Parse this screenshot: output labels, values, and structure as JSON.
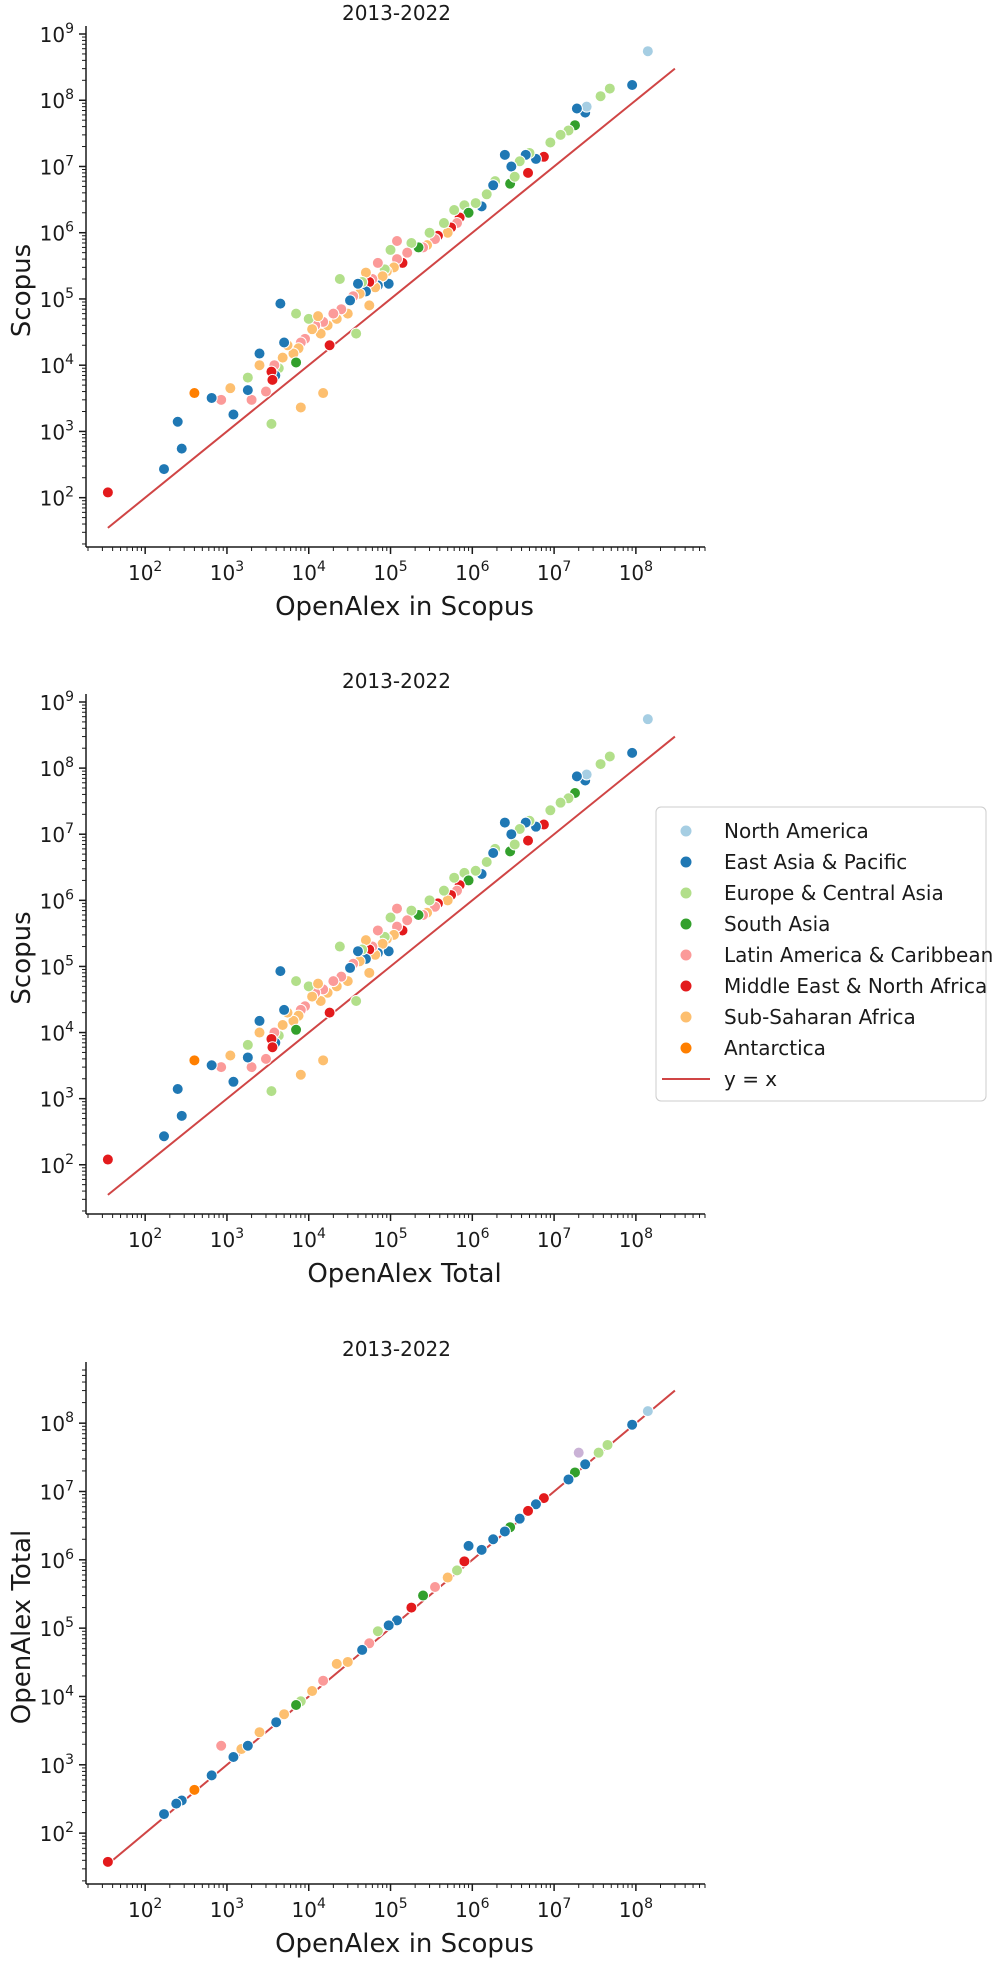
{
  "colors": {
    "North America": "#a6cee3",
    "East Asia & Pacific": "#1f78b4",
    "Europe & Central Asia": "#b2df8a",
    "South Asia": "#33a02c",
    "Latin America & Caribbean": "#fb9a99",
    "Middle East & North Africa": "#e31a1c",
    "Sub-Saharan Africa": "#fdbf6f",
    "Antarctica": "#ff7f00",
    "Other": "#cab2d6",
    "identity_line": "#d04545"
  },
  "legend": {
    "entries": [
      "North America",
      "East Asia & Pacific",
      "Europe & Central Asia",
      "South Asia",
      "Latin America & Caribbean",
      "Middle East & North Africa",
      "Sub-Saharan Africa",
      "Antarctica"
    ],
    "line_label": "y = x",
    "placement": "right of middle panel"
  },
  "chart_data": [
    {
      "type": "scatter",
      "title": "2013-2022",
      "xlabel": "OpenAlex in Scopus",
      "ylabel": "Scopus",
      "xscale": "log",
      "yscale": "log",
      "xlim": [
        20,
        700000000
      ],
      "ylim": [
        18,
        1000000000
      ],
      "x_ticks": [
        "10^2",
        "10^3",
        "10^4",
        "10^5",
        "10^6",
        "10^7",
        "10^8"
      ],
      "y_ticks": [
        "10^2",
        "10^3",
        "10^4",
        "10^5",
        "10^6",
        "10^7",
        "10^8",
        "10^9"
      ],
      "line": {
        "label": "y = x",
        "from": 35,
        "to": 300000000
      },
      "points": [
        {
          "r": "North America",
          "x": 140000000,
          "y": 550000000
        },
        {
          "r": "East Asia & Pacific",
          "x": 90000000,
          "y": 170000000
        },
        {
          "r": "Europe & Central Asia",
          "x": 48000000,
          "y": 150000000
        },
        {
          "r": "Europe & Central Asia",
          "x": 37000000,
          "y": 115000000
        },
        {
          "r": "East Asia & Pacific",
          "x": 24000000,
          "y": 65000000
        },
        {
          "r": "North America",
          "x": 25000000,
          "y": 80000000
        },
        {
          "r": "East Asia & Pacific",
          "x": 19000000,
          "y": 75000000
        },
        {
          "r": "South Asia",
          "x": 18000000,
          "y": 42000000
        },
        {
          "r": "Europe & Central Asia",
          "x": 15000000,
          "y": 35000000
        },
        {
          "r": "Europe & Central Asia",
          "x": 12000000,
          "y": 30000000
        },
        {
          "r": "Europe & Central Asia",
          "x": 9000000,
          "y": 23000000
        },
        {
          "r": "Middle East & North Africa",
          "x": 7500000,
          "y": 14000000
        },
        {
          "r": "East Asia & Pacific",
          "x": 6000000,
          "y": 13000000
        },
        {
          "r": "Middle East & North Africa",
          "x": 4800000,
          "y": 8000000
        },
        {
          "r": "Europe & Central Asia",
          "x": 5000000,
          "y": 16000000
        },
        {
          "r": "East Asia & Pacific",
          "x": 4500000,
          "y": 15000000
        },
        {
          "r": "Europe & Central Asia",
          "x": 3800000,
          "y": 12000000
        },
        {
          "r": "East Asia & Pacific",
          "x": 3000000,
          "y": 10000000
        },
        {
          "r": "South Asia",
          "x": 2900000,
          "y": 5500000
        },
        {
          "r": "Europe & Central Asia",
          "x": 3300000,
          "y": 7000000
        },
        {
          "r": "East Asia & Pacific",
          "x": 2500000,
          "y": 15000000
        },
        {
          "r": "Europe & Central Asia",
          "x": 1900000,
          "y": 6000000
        },
        {
          "r": "East Asia & Pacific",
          "x": 1800000,
          "y": 5200000
        },
        {
          "r": "Europe & Central Asia",
          "x": 1500000,
          "y": 3800000
        },
        {
          "r": "East Asia & Pacific",
          "x": 1300000,
          "y": 2500000
        },
        {
          "r": "Europe & Central Asia",
          "x": 1100000,
          "y": 2800000
        },
        {
          "r": "Europe & Central Asia",
          "x": 800000,
          "y": 2600000
        },
        {
          "r": "South Asia",
          "x": 900000,
          "y": 2000000
        },
        {
          "r": "Middle East & North Africa",
          "x": 700000,
          "y": 1700000
        },
        {
          "r": "Latin America & Caribbean",
          "x": 650000,
          "y": 1400000
        },
        {
          "r": "Europe & Central Asia",
          "x": 600000,
          "y": 2200000
        },
        {
          "r": "Middle East & North Africa",
          "x": 550000,
          "y": 1200000
        },
        {
          "r": "Sub-Saharan Africa",
          "x": 500000,
          "y": 1000000
        },
        {
          "r": "Europe & Central Asia",
          "x": 450000,
          "y": 1400000
        },
        {
          "r": "Middle East & North Africa",
          "x": 380000,
          "y": 900000
        },
        {
          "r": "Latin America & Caribbean",
          "x": 350000,
          "y": 800000
        },
        {
          "r": "Europe & Central Asia",
          "x": 300000,
          "y": 1000000
        },
        {
          "r": "Sub-Saharan Africa",
          "x": 280000,
          "y": 650000
        },
        {
          "r": "Latin America & Caribbean",
          "x": 250000,
          "y": 600000
        },
        {
          "r": "South Asia",
          "x": 220000,
          "y": 600000
        },
        {
          "r": "Europe & Central Asia",
          "x": 180000,
          "y": 700000
        },
        {
          "r": "Latin America & Caribbean",
          "x": 160000,
          "y": 500000
        },
        {
          "r": "Middle East & North Africa",
          "x": 140000,
          "y": 350000
        },
        {
          "r": "Latin America & Caribbean",
          "x": 120000,
          "y": 400000
        },
        {
          "r": "Latin America & Caribbean",
          "x": 120000,
          "y": 750000
        },
        {
          "r": "Europe & Central Asia",
          "x": 100000,
          "y": 550000
        },
        {
          "r": "Sub-Saharan Africa",
          "x": 110000,
          "y": 300000
        },
        {
          "r": "East Asia & Pacific",
          "x": 95000,
          "y": 170000
        },
        {
          "r": "Sub-Saharan Africa",
          "x": 90000,
          "y": 260000
        },
        {
          "r": "Europe & Central Asia",
          "x": 85000,
          "y": 280000
        },
        {
          "r": "Latin America & Caribbean",
          "x": 70000,
          "y": 350000
        },
        {
          "r": "Sub-Saharan Africa",
          "x": 80000,
          "y": 220000
        },
        {
          "r": "East Asia & Pacific",
          "x": 70000,
          "y": 160000
        },
        {
          "r": "Sub-Saharan Africa",
          "x": 65000,
          "y": 150000
        },
        {
          "r": "Latin America & Caribbean",
          "x": 60000,
          "y": 200000
        },
        {
          "r": "Middle East & North Africa",
          "x": 55000,
          "y": 180000
        },
        {
          "r": "Sub-Saharan Africa",
          "x": 50000,
          "y": 250000
        },
        {
          "r": "East Asia & Pacific",
          "x": 50000,
          "y": 130000
        },
        {
          "r": "Europe & Central Asia",
          "x": 45000,
          "y": 180000
        },
        {
          "r": "Sub-Saharan Africa",
          "x": 42000,
          "y": 120000
        },
        {
          "r": "East Asia & Pacific",
          "x": 40000,
          "y": 170000
        },
        {
          "r": "Latin America & Caribbean",
          "x": 35000,
          "y": 110000
        },
        {
          "r": "East Asia & Pacific",
          "x": 32000,
          "y": 95000
        },
        {
          "r": "Sub-Saharan Africa",
          "x": 30000,
          "y": 60000
        },
        {
          "r": "Europe & Central Asia",
          "x": 38000,
          "y": 30000
        },
        {
          "r": "Europe & Central Asia",
          "x": 24000,
          "y": 200000
        },
        {
          "r": "Sub-Saharan Africa",
          "x": 55000,
          "y": 80000
        },
        {
          "r": "Latin America & Caribbean",
          "x": 25000,
          "y": 70000
        },
        {
          "r": "Sub-Saharan Africa",
          "x": 22000,
          "y": 50000
        },
        {
          "r": "Latin America & Caribbean",
          "x": 20000,
          "y": 60000
        },
        {
          "r": "Sub-Saharan Africa",
          "x": 17000,
          "y": 40000
        },
        {
          "r": "Latin America & Caribbean",
          "x": 15000,
          "y": 45000
        },
        {
          "r": "Middle East & North Africa",
          "x": 18000,
          "y": 20000
        },
        {
          "r": "Sub-Saharan Africa",
          "x": 14000,
          "y": 30000
        },
        {
          "r": "Latin America & Caribbean",
          "x": 12000,
          "y": 40000
        },
        {
          "r": "Sub-Saharan Africa",
          "x": 11000,
          "y": 35000
        },
        {
          "r": "Europe & Central Asia",
          "x": 10000,
          "y": 50000
        },
        {
          "r": "Sub-Saharan Africa",
          "x": 13000,
          "y": 55000
        },
        {
          "r": "Latin America & Caribbean",
          "x": 9000,
          "y": 25000
        },
        {
          "r": "Latin America & Caribbean",
          "x": 8000,
          "y": 22000
        },
        {
          "r": "Sub-Saharan Africa",
          "x": 7500,
          "y": 18000
        },
        {
          "r": "Europe & Central Asia",
          "x": 7000,
          "y": 60000
        },
        {
          "r": "Sub-Saharan Africa",
          "x": 6500,
          "y": 15000
        },
        {
          "r": "South Asia",
          "x": 7000,
          "y": 11000
        },
        {
          "r": "Sub-Saharan Africa",
          "x": 5500,
          "y": 20000
        },
        {
          "r": "East Asia & Pacific",
          "x": 5000,
          "y": 22000
        },
        {
          "r": "East Asia & Pacific",
          "x": 4500,
          "y": 85000
        },
        {
          "r": "Sub-Saharan Africa",
          "x": 4800,
          "y": 13000
        },
        {
          "r": "Europe & Central Asia",
          "x": 4300,
          "y": 9000
        },
        {
          "r": "Latin America & Caribbean",
          "x": 3800,
          "y": 10000
        },
        {
          "r": "East Asia & Pacific",
          "x": 3900,
          "y": 7000
        },
        {
          "r": "Middle East & North Africa",
          "x": 3500,
          "y": 8000
        },
        {
          "r": "Middle East & North Africa",
          "x": 3600,
          "y": 6000
        },
        {
          "r": "Latin America & Caribbean",
          "x": 3000,
          "y": 4000
        },
        {
          "r": "Europe & Central Asia",
          "x": 3500,
          "y": 1300
        },
        {
          "r": "Sub-Saharan Africa",
          "x": 8000,
          "y": 2300
        },
        {
          "r": "Sub-Saharan Africa",
          "x": 15000,
          "y": 3800
        },
        {
          "r": "Sub-Saharan Africa",
          "x": 2500,
          "y": 10000
        },
        {
          "r": "East Asia & Pacific",
          "x": 2500,
          "y": 15000
        },
        {
          "r": "Latin America & Caribbean",
          "x": 2000,
          "y": 3000
        },
        {
          "r": "East Asia & Pacific",
          "x": 1800,
          "y": 4200
        },
        {
          "r": "Europe & Central Asia",
          "x": 1800,
          "y": 6500
        },
        {
          "r": "East Asia & Pacific",
          "x": 1200,
          "y": 1800
        },
        {
          "r": "Sub-Saharan Africa",
          "x": 1100,
          "y": 4500
        },
        {
          "r": "Latin America & Caribbean",
          "x": 850,
          "y": 3000
        },
        {
          "r": "East Asia & Pacific",
          "x": 650,
          "y": 3200
        },
        {
          "r": "Antarctica",
          "x": 400,
          "y": 3800
        },
        {
          "r": "East Asia & Pacific",
          "x": 280,
          "y": 550
        },
        {
          "r": "East Asia & Pacific",
          "x": 250,
          "y": 1400
        },
        {
          "r": "East Asia & Pacific",
          "x": 170,
          "y": 270
        },
        {
          "r": "Middle East & North Africa",
          "x": 35,
          "y": 120
        }
      ]
    },
    {
      "type": "scatter",
      "title": "2013-2022",
      "xlabel": "OpenAlex Total",
      "ylabel": "Scopus",
      "xscale": "log",
      "yscale": "log",
      "xlim": [
        20,
        700000000
      ],
      "ylim": [
        18,
        1000000000
      ],
      "x_ticks": [
        "10^2",
        "10^3",
        "10^4",
        "10^5",
        "10^6",
        "10^7",
        "10^8"
      ],
      "y_ticks": [
        "10^2",
        "10^3",
        "10^4",
        "10^5",
        "10^6",
        "10^7",
        "10^8",
        "10^9"
      ],
      "line": {
        "label": "y = x",
        "from": 35,
        "to": 300000000
      },
      "points_note": "same points as panel 1 with x = OpenAlex Total",
      "points_from_panel": 0
    },
    {
      "type": "scatter",
      "title": "2013-2022",
      "xlabel": "OpenAlex in Scopus",
      "ylabel": "OpenAlex Total",
      "xscale": "log",
      "yscale": "log",
      "xlim": [
        20,
        700000000
      ],
      "ylim": [
        18,
        600000000
      ],
      "x_ticks": [
        "10^2",
        "10^3",
        "10^4",
        "10^5",
        "10^6",
        "10^7",
        "10^8"
      ],
      "y_ticks": [
        "10^2",
        "10^3",
        "10^4",
        "10^5",
        "10^6",
        "10^7",
        "10^8"
      ],
      "line": {
        "label": "y = x",
        "from": 35,
        "to": 300000000
      },
      "points": [
        {
          "r": "North America",
          "x": 140000000,
          "y": 150000000
        },
        {
          "r": "East Asia & Pacific",
          "x": 90000000,
          "y": 95000000
        },
        {
          "r": "Europe & Central Asia",
          "x": 45000000,
          "y": 48000000
        },
        {
          "r": "Europe & Central Asia",
          "x": 35000000,
          "y": 37000000
        },
        {
          "r": "Other",
          "x": 20000000,
          "y": 37000000
        },
        {
          "r": "East Asia & Pacific",
          "x": 24000000,
          "y": 25000000
        },
        {
          "r": "South Asia",
          "x": 18000000,
          "y": 19000000
        },
        {
          "r": "East Asia & Pacific",
          "x": 15000000,
          "y": 15000000
        },
        {
          "r": "Middle East & North Africa",
          "x": 7500000,
          "y": 8000000
        },
        {
          "r": "East Asia & Pacific",
          "x": 6000000,
          "y": 6500000
        },
        {
          "r": "Middle East & North Africa",
          "x": 4800000,
          "y": 5200000
        },
        {
          "r": "East Asia & Pacific",
          "x": 3800000,
          "y": 4000000
        },
        {
          "r": "South Asia",
          "x": 2900000,
          "y": 3000000
        },
        {
          "r": "East Asia & Pacific",
          "x": 2500000,
          "y": 2600000
        },
        {
          "r": "East Asia & Pacific",
          "x": 1800000,
          "y": 2000000
        },
        {
          "r": "East Asia & Pacific",
          "x": 1300000,
          "y": 1400000
        },
        {
          "r": "East Asia & Pacific",
          "x": 900000,
          "y": 1600000
        },
        {
          "r": "Middle East & North Africa",
          "x": 800000,
          "y": 950000
        },
        {
          "r": "Europe & Central Asia",
          "x": 650000,
          "y": 700000
        },
        {
          "r": "Sub-Saharan Africa",
          "x": 500000,
          "y": 550000
        },
        {
          "r": "Latin America & Caribbean",
          "x": 350000,
          "y": 400000
        },
        {
          "r": "South Asia",
          "x": 250000,
          "y": 300000
        },
        {
          "r": "Middle East & North Africa",
          "x": 180000,
          "y": 200000
        },
        {
          "r": "East Asia & Pacific",
          "x": 120000,
          "y": 130000
        },
        {
          "r": "East Asia & Pacific",
          "x": 95000,
          "y": 110000
        },
        {
          "r": "Europe & Central Asia",
          "x": 70000,
          "y": 90000
        },
        {
          "r": "Latin America & Caribbean",
          "x": 55000,
          "y": 60000
        },
        {
          "r": "East Asia & Pacific",
          "x": 45000,
          "y": 48000
        },
        {
          "r": "Sub-Saharan Africa",
          "x": 30000,
          "y": 32000
        },
        {
          "r": "Sub-Saharan Africa",
          "x": 22000,
          "y": 30000
        },
        {
          "r": "Latin America & Caribbean",
          "x": 15000,
          "y": 17000
        },
        {
          "r": "Sub-Saharan Africa",
          "x": 11000,
          "y": 12000
        },
        {
          "r": "Europe & Central Asia",
          "x": 8000,
          "y": 8500
        },
        {
          "r": "South Asia",
          "x": 7000,
          "y": 7500
        },
        {
          "r": "Sub-Saharan Africa",
          "x": 5000,
          "y": 5500
        },
        {
          "r": "East Asia & Pacific",
          "x": 4000,
          "y": 4200
        },
        {
          "r": "Sub-Saharan Africa",
          "x": 2500,
          "y": 3000
        },
        {
          "r": "Sub-Saharan Africa",
          "x": 1500,
          "y": 1700
        },
        {
          "r": "East Asia & Pacific",
          "x": 1800,
          "y": 1900
        },
        {
          "r": "East Asia & Pacific",
          "x": 1200,
          "y": 1300
        },
        {
          "r": "Latin America & Caribbean",
          "x": 850,
          "y": 1900
        },
        {
          "r": "East Asia & Pacific",
          "x": 650,
          "y": 700
        },
        {
          "r": "Antarctica",
          "x": 400,
          "y": 430
        },
        {
          "r": "East Asia & Pacific",
          "x": 280,
          "y": 300
        },
        {
          "r": "East Asia & Pacific",
          "x": 240,
          "y": 270
        },
        {
          "r": "East Asia & Pacific",
          "x": 170,
          "y": 190
        },
        {
          "r": "Middle East & North Africa",
          "x": 35,
          "y": 38
        }
      ]
    }
  ]
}
